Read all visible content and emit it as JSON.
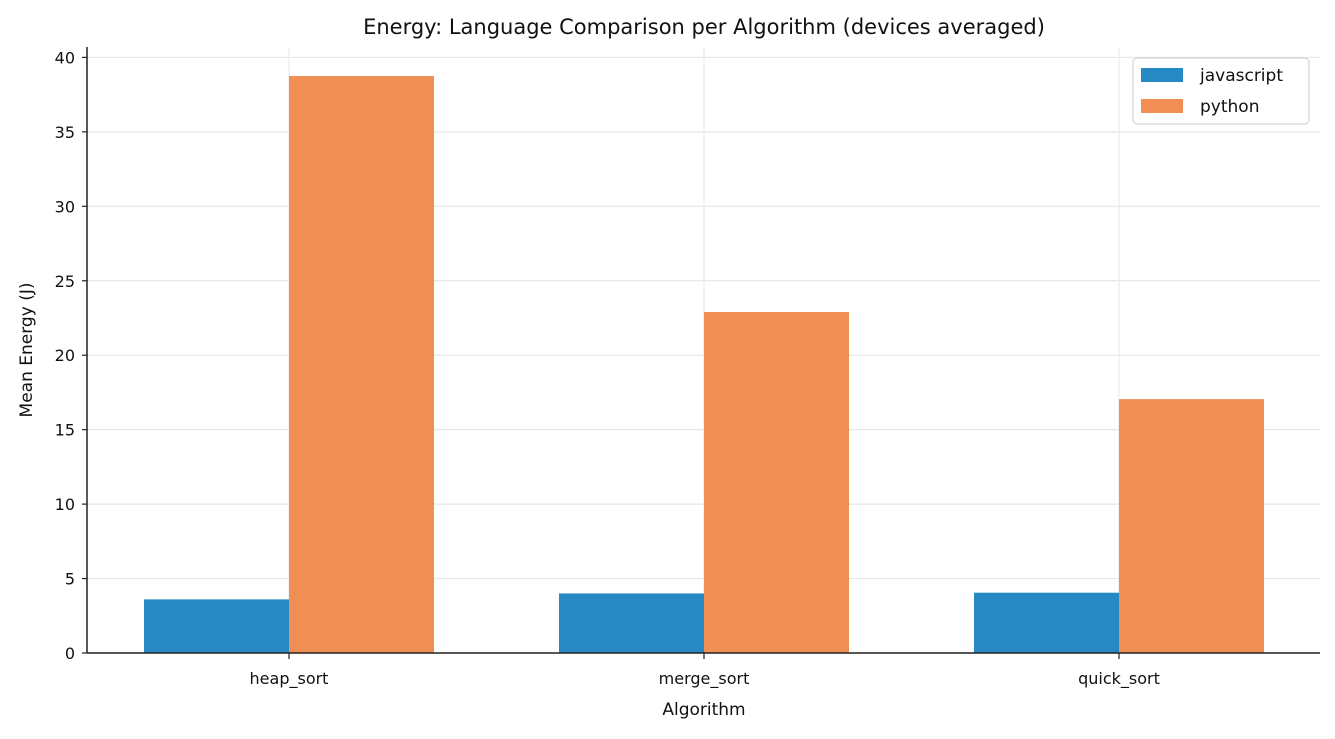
{
  "chart_data": {
    "type": "bar",
    "title": "Energy: Language Comparison per Algorithm (devices averaged)",
    "xlabel": "Algorithm",
    "ylabel": "Mean Energy (J)",
    "categories": [
      "heap_sort",
      "merge_sort",
      "quick_sort"
    ],
    "series": [
      {
        "name": "javascript",
        "color": "#2789c4",
        "values": [
          3.6,
          4.0,
          4.05
        ]
      },
      {
        "name": "python",
        "color": "#f08e53",
        "values": [
          38.75,
          22.9,
          17.05
        ]
      }
    ],
    "ylim": [
      0,
      40.7
    ],
    "yticks": [
      0,
      5,
      10,
      15,
      20,
      25,
      30,
      35,
      40
    ],
    "grid": true,
    "legend": "top-right"
  }
}
